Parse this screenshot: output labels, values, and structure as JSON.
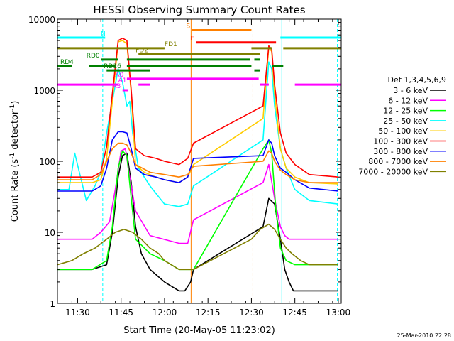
{
  "chart_data": {
    "type": "line",
    "title": "HESSI Observing Summary Count Rates",
    "xlabel": "Start Time (20-May-05 11:23:02)",
    "ylabel_main": "Count Rate (s",
    "ylabel_sup1": "-1",
    "ylabel_mid": " detector",
    "ylabel_sup2": "-1",
    "ylabel_end": ")",
    "y_scale": "log",
    "xlim": [
      "11:23:02",
      "13:01:00"
    ],
    "ylim": [
      1,
      10000
    ],
    "x_ticks": [
      "11:30",
      "11:45",
      "12:00",
      "12:15",
      "12:30",
      "12:45",
      "13:00"
    ],
    "y_ticks": [
      "1",
      "10",
      "100",
      "1000",
      "10000"
    ],
    "footer": "25-Mar-2010 22:28",
    "legend_title": "Det 1,3,4,5,6,9",
    "legend_position": "right",
    "series": [
      {
        "name": "3 - 6 keV",
        "color": "#000000",
        "x": [
          "11:23:02",
          "11:35:00",
          "11:40:00",
          "11:42:00",
          "11:44:00",
          "11:45:30",
          "11:47:00",
          "11:48:30",
          "11:50:00",
          "11:52:00",
          "11:55:00",
          "12:00:00",
          "12:05:00",
          "12:07:00",
          "12:09:00",
          "12:10:00",
          "12:34:00",
          "12:36:00",
          "12:38:00",
          "12:40:00",
          "12:41:30",
          "12:43:00",
          "12:44:30",
          "12:46:00",
          "12:48:00",
          "13:00:00"
        ],
        "y": [
          3,
          3,
          3.5,
          10,
          60,
          120,
          130,
          50,
          12,
          5,
          3,
          2,
          1.5,
          1.5,
          2,
          3,
          12,
          30,
          25,
          8,
          3,
          2,
          1.5,
          1.5,
          1.5,
          1.5
        ]
      },
      {
        "name": "6 - 12 keV",
        "color": "#ff00ff",
        "x": [
          "11:23:02",
          "11:35:00",
          "11:38:00",
          "11:41:00",
          "11:43:00",
          "11:45:00",
          "11:46:30",
          "11:48:00",
          "11:50:00",
          "11:55:00",
          "12:05:00",
          "12:08:00",
          "12:10:00",
          "12:34:00",
          "12:36:00",
          "12:38:00",
          "12:40:00",
          "12:41:30",
          "12:43:00",
          "12:45:00",
          "13:00:00"
        ],
        "y": [
          8,
          8,
          10,
          14,
          40,
          140,
          150,
          60,
          20,
          9,
          7,
          7,
          15,
          50,
          90,
          30,
          12,
          9,
          8,
          8,
          8
        ]
      },
      {
        "name": "12 - 25 keV",
        "color": "#00ff00",
        "x": [
          "11:23:02",
          "11:35:00",
          "11:40:00",
          "11:42:00",
          "11:44:00",
          "11:45:30",
          "11:47:00",
          "11:48:30",
          "11:50:00",
          "11:55:00",
          "12:00:00",
          "12:05:00",
          "12:08:00",
          "12:10:00",
          "12:34:00",
          "12:36:00",
          "12:37:00",
          "12:38:30",
          "12:40:00",
          "12:42:00",
          "12:45:00",
          "13:00:00"
        ],
        "y": [
          3,
          3,
          4,
          12,
          80,
          140,
          120,
          30,
          8,
          5,
          4,
          3,
          3,
          3,
          150,
          200,
          130,
          20,
          6,
          4,
          3.5,
          3.5
        ]
      },
      {
        "name": "25 - 50 keV",
        "color": "#00ffff",
        "x": [
          "11:23:02",
          "11:27:00",
          "11:29:00",
          "11:31:00",
          "11:33:00",
          "11:36:00",
          "11:38:00",
          "11:40:00",
          "11:42:00",
          "11:44:00",
          "11:45:30",
          "11:47:00",
          "11:48:00",
          "11:49:00",
          "11:51:00",
          "11:55:00",
          "12:00:00",
          "12:05:00",
          "12:08:00",
          "12:10:00",
          "12:34:00",
          "12:36:00",
          "12:37:00",
          "12:38:00",
          "12:40:00",
          "12:42:00",
          "12:45:00",
          "12:50:00",
          "13:00:00"
        ],
        "y": [
          40,
          40,
          130,
          60,
          28,
          45,
          70,
          250,
          700,
          2000,
          1300,
          600,
          700,
          250,
          80,
          45,
          25,
          23,
          25,
          45,
          200,
          2500,
          2000,
          600,
          150,
          80,
          40,
          28,
          25
        ]
      },
      {
        "name": "50 - 100 keV",
        "color": "#ffcc00",
        "x": [
          "11:23:02",
          "11:35:00",
          "11:38:00",
          "11:40:00",
          "11:42:00",
          "11:44:00",
          "11:45:30",
          "11:47:00",
          "11:48:30",
          "11:50:00",
          "11:53:00",
          "11:57:00",
          "12:00:00",
          "12:05:00",
          "12:08:00",
          "12:10:00",
          "12:34:00",
          "12:36:00",
          "12:37:00",
          "12:38:00",
          "12:40:00",
          "12:42:00",
          "12:45:00",
          "12:50:00",
          "13:00:00"
        ],
        "y": [
          50,
          50,
          55,
          110,
          700,
          4800,
          5000,
          4500,
          900,
          90,
          70,
          60,
          55,
          50,
          60,
          90,
          400,
          4000,
          3500,
          900,
          150,
          80,
          60,
          50,
          48
        ]
      },
      {
        "name": "100 - 300 keV",
        "color": "#ff0000",
        "x": [
          "11:23:02",
          "11:35:00",
          "11:38:00",
          "11:40:00",
          "11:42:00",
          "11:44:00",
          "11:45:30",
          "11:47:00",
          "11:48:30",
          "11:50:00",
          "11:53:00",
          "11:57:00",
          "12:00:00",
          "12:05:00",
          "12:08:00",
          "12:10:00",
          "12:34:00",
          "12:36:00",
          "12:37:00",
          "12:38:00",
          "12:40:00",
          "12:42:00",
          "12:45:00",
          "12:50:00",
          "13:00:00"
        ],
        "y": [
          60,
          60,
          70,
          160,
          900,
          5000,
          5400,
          5000,
          1000,
          150,
          120,
          110,
          100,
          90,
          110,
          180,
          600,
          4200,
          3800,
          1200,
          250,
          130,
          90,
          65,
          60
        ]
      },
      {
        "name": "300 - 800 keV",
        "color": "#0000ff",
        "x": [
          "11:23:02",
          "11:35:00",
          "11:38:00",
          "11:40:00",
          "11:42:00",
          "11:44:00",
          "11:45:30",
          "11:47:00",
          "11:48:30",
          "11:50:00",
          "11:53:00",
          "11:57:00",
          "12:00:00",
          "12:05:00",
          "12:08:00",
          "12:10:00",
          "12:34:00",
          "12:36:00",
          "12:37:00",
          "12:38:00",
          "12:40:00",
          "12:42:00",
          "12:45:00",
          "12:50:00",
          "13:00:00"
        ],
        "y": [
          38,
          38,
          45,
          80,
          200,
          260,
          260,
          250,
          150,
          80,
          65,
          60,
          55,
          50,
          60,
          110,
          120,
          200,
          180,
          120,
          80,
          70,
          55,
          42,
          38
        ]
      },
      {
        "name": "800 - 7000 keV",
        "color": "#ff8000",
        "x": [
          "11:23:02",
          "11:35:00",
          "11:38:00",
          "11:40:00",
          "11:42:00",
          "11:44:00",
          "11:45:30",
          "11:47:00",
          "11:48:30",
          "11:50:00",
          "11:55:00",
          "12:00:00",
          "12:05:00",
          "12:08:00",
          "12:10:00",
          "12:34:00",
          "12:36:00",
          "12:37:00",
          "12:38:00",
          "12:40:00",
          "12:42:00",
          "12:45:00",
          "12:50:00",
          "13:00:00"
        ],
        "y": [
          55,
          55,
          65,
          100,
          150,
          180,
          180,
          170,
          130,
          90,
          70,
          65,
          60,
          65,
          85,
          100,
          140,
          130,
          100,
          75,
          65,
          55,
          50,
          50
        ]
      },
      {
        "name": "7000 - 20000 keV",
        "color": "#808000",
        "x": [
          "11:23:02",
          "11:28:00",
          "11:32:00",
          "11:36:00",
          "11:40:00",
          "11:43:00",
          "11:46:00",
          "11:49:00",
          "11:52:00",
          "11:55:00",
          "11:58:00",
          "12:00:00",
          "12:05:00",
          "12:10:00",
          "12:30:00",
          "12:33:00",
          "12:36:00",
          "12:38:00",
          "12:40:00",
          "12:42:00",
          "12:44:00",
          "12:47:00",
          "12:50:00",
          "13:00:00"
        ],
        "y": [
          3.5,
          4,
          5,
          6,
          8,
          10,
          11,
          10,
          8,
          6,
          5,
          4,
          3,
          3,
          8,
          11,
          13,
          11,
          8,
          6,
          5,
          4,
          3.5,
          3.5
        ]
      }
    ],
    "annotations": [
      {
        "label": "N",
        "color": "#00ffff",
        "y": 5500,
        "segments": [
          [
            "11:23:02",
            "11:39:30"
          ],
          [
            "12:40:00",
            "13:01:00"
          ]
        ],
        "label_at": "11:38:00"
      },
      {
        "label": "S",
        "color": "#ff8000",
        "y": 7000,
        "segments": [
          [
            "12:09:30",
            "12:30:00"
          ]
        ],
        "label_at": "12:07:30"
      },
      {
        "label": "F",
        "color": "#ff0000",
        "y": 4700,
        "segments": [
          [
            "12:11:00",
            "12:38:30"
          ]
        ],
        "label_at": "12:09:00"
      },
      {
        "label": "FD1",
        "color": "#808000",
        "y": 3900,
        "segments": [
          [
            "11:23:02",
            "12:00:00"
          ],
          [
            "12:30:00",
            "12:37:00"
          ],
          [
            "12:41:00",
            "13:01:00"
          ]
        ],
        "label_at": "12:00:00"
      },
      {
        "label": "FD2",
        "color": "#808000",
        "y": 3200,
        "segments": [
          [
            "11:51:00",
            "12:33:00"
          ]
        ],
        "label_at": "11:50:00"
      },
      {
        "label": "RD0",
        "color": "#008000",
        "y": 2700,
        "segments": [
          [
            "11:38:00",
            "11:44:00"
          ],
          [
            "11:47:00",
            "12:29:30"
          ],
          [
            "12:31:00",
            "12:33:00"
          ]
        ],
        "label_at": "11:33:00"
      },
      {
        "label": "RD4",
        "color": "#008000",
        "y": 2200,
        "segments": [
          [
            "11:23:02",
            "11:28:00"
          ],
          [
            "11:34:00",
            "11:43:00"
          ],
          [
            "11:47:00",
            "12:30:00"
          ],
          [
            "12:37:00",
            "12:41:00"
          ]
        ],
        "label_at": "11:24:00"
      },
      {
        "label": "RD16",
        "color": "#008000",
        "y": 1900,
        "segments": [
          [
            "11:40:00",
            "11:55:00"
          ],
          [
            "12:31:00",
            "12:33:00"
          ]
        ],
        "label_at": "11:39:00"
      },
      {
        "label": "A0",
        "color": "#ff00ff",
        "y": 1450,
        "segments": [
          [
            "11:47:00",
            "12:32:30"
          ]
        ],
        "label_at": "11:43:00"
      },
      {
        "label": "A1",
        "color": "#ff00ff",
        "y": 1200,
        "segments": [
          [
            "11:23:02",
            "11:44:00"
          ],
          [
            "11:51:00",
            "11:55:00"
          ],
          [
            "12:33:00",
            "12:36:00"
          ],
          [
            "12:45:00",
            "13:01:00"
          ]
        ],
        "label_at": "11:44:00"
      },
      {
        "label": "A3",
        "color": "#ff00ff",
        "y": 1000,
        "segments": [
          [
            "11:45:30",
            "11:47:30"
          ]
        ],
        "label_at": "11:42:00"
      }
    ],
    "vertical_markers": [
      {
        "time": "11:23:02",
        "color": "#00ffff",
        "style": "dashed"
      },
      {
        "time": "11:38:40",
        "color": "#00ffff",
        "style": "dashed"
      },
      {
        "time": "12:09:10",
        "color": "#ff8000",
        "style": "solid"
      },
      {
        "time": "12:30:30",
        "color": "#ff8000",
        "style": "dashed"
      },
      {
        "time": "12:40:30",
        "color": "#00ffff",
        "style": "solid"
      },
      {
        "time": "12:59:40",
        "color": "#00ffff",
        "style": "dashed"
      }
    ]
  }
}
